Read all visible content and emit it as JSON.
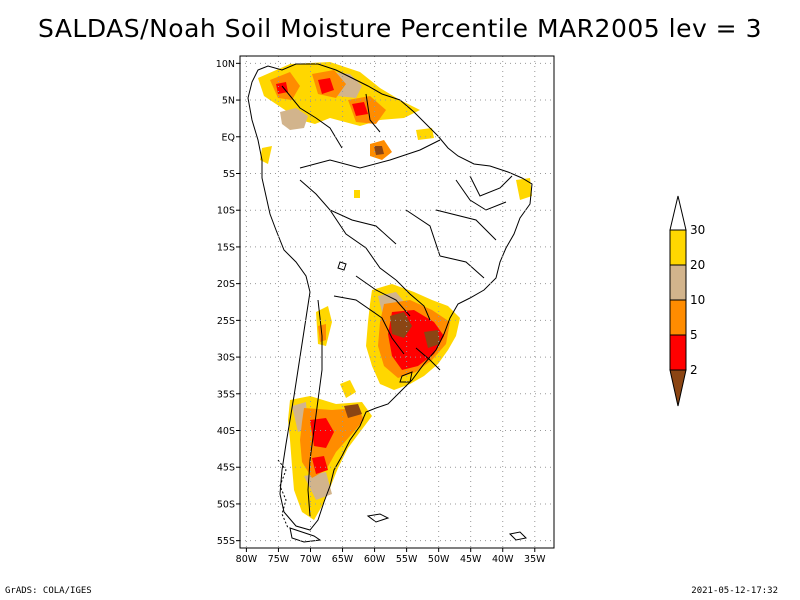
{
  "title": "SALDAS/Noah Soil Moisture Percentile MAR2005 lev = 3",
  "footer_left": "GrADS: COLA/IGES",
  "footer_right": "2021-05-12-17:32",
  "map": {
    "lon_labels": [
      "80W",
      "75W",
      "70W",
      "65W",
      "60W",
      "55W",
      "50W",
      "45W",
      "40W",
      "35W"
    ],
    "lat_labels": [
      "10N",
      "5N",
      "EQ",
      "5S",
      "10S",
      "15S",
      "20S",
      "25S",
      "30S",
      "35S",
      "40S",
      "45S",
      "50S",
      "55S"
    ],
    "grid": true
  },
  "legend": {
    "levels": [
      "2",
      "5",
      "10",
      "20",
      "30"
    ],
    "colors": [
      "#8b4513",
      "#ff0000",
      "#ff8c00",
      "#d2b48c",
      "#ffd700",
      "#ffffff"
    ]
  },
  "chart_data": {
    "type": "heatmap",
    "title": "SALDAS/Noah Soil Moisture Percentile MAR2005 lev = 3",
    "lon_range": [
      -81,
      -32
    ],
    "lat_range": [
      -56,
      11
    ],
    "lon_ticks": [
      "80W",
      "75W",
      "70W",
      "65W",
      "60W",
      "55W",
      "50W",
      "45W",
      "40W",
      "35W"
    ],
    "lat_ticks": [
      "10N",
      "5N",
      "EQ",
      "5S",
      "10S",
      "15S",
      "20S",
      "25S",
      "30S",
      "35S",
      "40S",
      "45S",
      "50S",
      "55S"
    ],
    "colorbar_levels": [
      2,
      5,
      10,
      20,
      30
    ],
    "grid": true
  }
}
